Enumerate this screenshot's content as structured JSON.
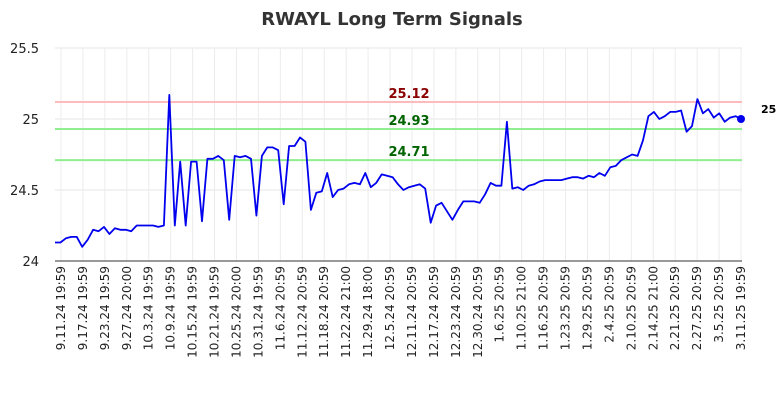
{
  "chart_data": {
    "type": "line",
    "title": "RWAYL Long Term Signals",
    "xlabel": "",
    "ylabel": "",
    "ylim": [
      24,
      25.5
    ],
    "y_ticks": [
      "25.5",
      "25",
      "24.5",
      "24"
    ],
    "x_tick_labels": [
      "9.11.24 19:59",
      "9.17.24 19:59",
      "9.23.24 19:59",
      "9.27.24 20:00",
      "10.3.24 19:59",
      "10.9.24 19:59",
      "10.15.24 19:59",
      "10.21.24 19:59",
      "10.25.24 20:00",
      "10.31.24 19:59",
      "11.6.24 20:59",
      "11.12.24 20:59",
      "11.18.24 20:59",
      "11.22.24 21:00",
      "11.29.24 18:00",
      "12.5.24 20:59",
      "12.11.24 20:59",
      "12.17.24 20:59",
      "12.23.24 20:59",
      "12.30.24 20:59",
      "1.6.25 20:59",
      "1.10.25 21:00",
      "1.16.25 20:59",
      "1.23.25 20:59",
      "1.29.25 20:59",
      "2.4.25 20:59",
      "2.10.25 20:59",
      "2.14.25 21:00",
      "2.21.25 20:59",
      "2.27.25 20:59",
      "3.5.25 20:59",
      "3.11.25 19:59"
    ],
    "grid": true,
    "line_color": "#0000ee",
    "horizontal_lines": [
      {
        "value": 25.12,
        "label": "25.12",
        "line_color": "#ffbbbb",
        "label_color": "#8b0000"
      },
      {
        "value": 24.93,
        "label": "24.93",
        "line_color": "#90ee90",
        "label_color": "#006400"
      },
      {
        "value": 24.71,
        "label": "24.71",
        "line_color": "#90ee90",
        "label_color": "#006400"
      }
    ],
    "last_value_label": "25",
    "series": [
      {
        "values": [
          24.13,
          24.13,
          24.16,
          24.17,
          24.17,
          24.1,
          24.15,
          24.22,
          24.21,
          24.24,
          24.19,
          24.23,
          24.22,
          24.22,
          24.21,
          24.25,
          24.25,
          24.25,
          24.25,
          24.24,
          24.25,
          25.17,
          24.25,
          24.7,
          24.25,
          24.7,
          24.7,
          24.28,
          24.72,
          24.72,
          24.74,
          24.71,
          24.29,
          24.74,
          24.73,
          24.74,
          24.72,
          24.32,
          24.74,
          24.8,
          24.8,
          24.78,
          24.4,
          24.81,
          24.81,
          24.87,
          24.84,
          24.36,
          24.48,
          24.49,
          24.62,
          24.45,
          24.5,
          24.51,
          24.54,
          24.55,
          24.54,
          24.62,
          24.52,
          24.55,
          24.61,
          24.6,
          24.59,
          24.54,
          24.5,
          24.52,
          24.53,
          24.54,
          24.51,
          24.27,
          24.39,
          24.41,
          24.35,
          24.29,
          24.36,
          24.42,
          24.42,
          24.42,
          24.41,
          24.47,
          24.55,
          24.53,
          24.53,
          24.98,
          24.51,
          24.52,
          24.5,
          24.53,
          24.54,
          24.56,
          24.57,
          24.57,
          24.57,
          24.57,
          24.58,
          24.59,
          24.59,
          24.58,
          24.6,
          24.59,
          24.62,
          24.6,
          24.66,
          24.67,
          24.71,
          24.73,
          24.75,
          24.74,
          24.85,
          25.02,
          25.05,
          25.0,
          25.02,
          25.05,
          25.05,
          25.06,
          24.91,
          24.95,
          25.14,
          25.04,
          25.07,
          25.01,
          25.04,
          24.98,
          25.01,
          25.02,
          25.0
        ]
      }
    ]
  }
}
